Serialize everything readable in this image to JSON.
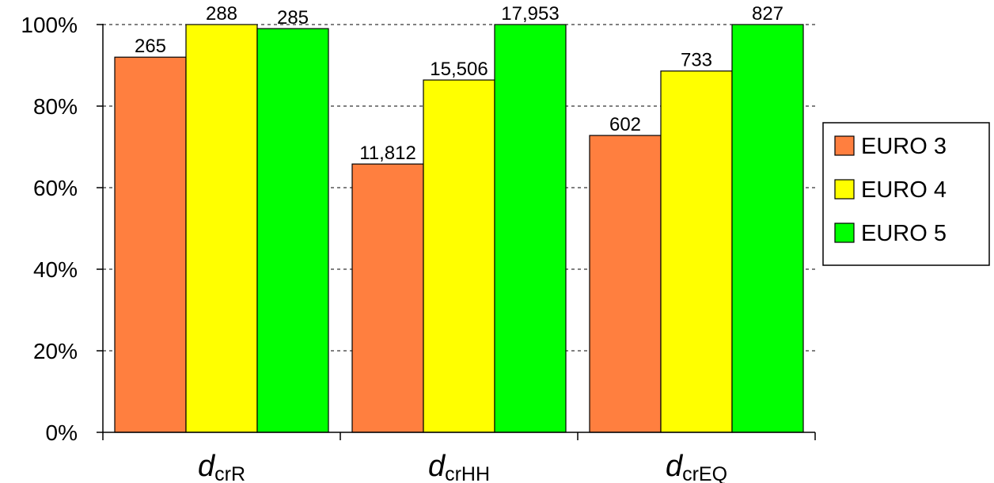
{
  "chart_data": {
    "type": "bar",
    "categories": [
      {
        "base": "d",
        "sub": "crR"
      },
      {
        "base": "d",
        "sub": "crHH"
      },
      {
        "base": "d",
        "sub": "crEQ"
      }
    ],
    "series": [
      {
        "name": "EURO 3",
        "color": "#ff7f3f",
        "values": [
          92.0,
          65.8,
          72.8
        ],
        "labels": [
          "265",
          "11,812",
          "602"
        ]
      },
      {
        "name": "EURO 4",
        "color": "#ffff00",
        "values": [
          100,
          86.4,
          88.6
        ],
        "labels": [
          "288",
          "15,506",
          "733"
        ]
      },
      {
        "name": "EURO 5",
        "color": "#00ff00",
        "values": [
          99.0,
          100,
          100
        ],
        "labels": [
          "285",
          "17,953",
          "827"
        ]
      }
    ],
    "yticks": [
      "0%",
      "20%",
      "40%",
      "60%",
      "80%",
      "100%"
    ],
    "ylim": [
      0,
      100
    ],
    "title": "",
    "xlabel": "",
    "ylabel": "",
    "grid": "horizontal dashed",
    "legend_position": "right"
  }
}
